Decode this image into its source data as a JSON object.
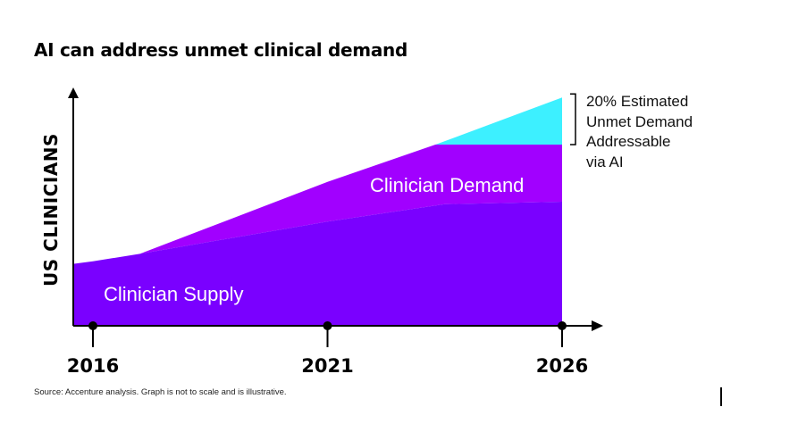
{
  "title": "AI can address unmet clinical demand",
  "source_note": "Source: Accenture analysis. Graph is not to scale and is illustrative.",
  "chart_data": {
    "type": "area",
    "title": "AI can address unmet clinical demand",
    "xlabel": "",
    "ylabel": "US CLINICIANS",
    "x_ticks": [
      "2016",
      "2021",
      "2026"
    ],
    "xlim": [
      2016,
      2026
    ],
    "ylim": [
      0,
      100
    ],
    "grid": false,
    "axis_arrows": true,
    "series": [
      {
        "name": "Clinician Supply",
        "color": "#7a00ff",
        "x": [
          2015.6,
          2016,
          2017,
          2021,
          2023.5,
          2026
        ],
        "y": [
          25,
          26,
          29,
          42,
          49,
          50
        ]
      },
      {
        "name": "Clinician Demand",
        "color": "#a100ff",
        "x": [
          2015.6,
          2016,
          2017,
          2021,
          2023.3,
          2026
        ],
        "y": [
          25,
          26,
          29,
          58,
          73,
          73
        ]
      },
      {
        "name": "20% Estimated Unmet Demand Addressable via AI",
        "color": "#3df0ff",
        "x": [
          2023.3,
          2026
        ],
        "y": [
          73,
          92
        ]
      }
    ],
    "annotation_lines": [
      "20% Estimated",
      "Unmet Demand",
      "Addressable",
      "via AI"
    ]
  }
}
